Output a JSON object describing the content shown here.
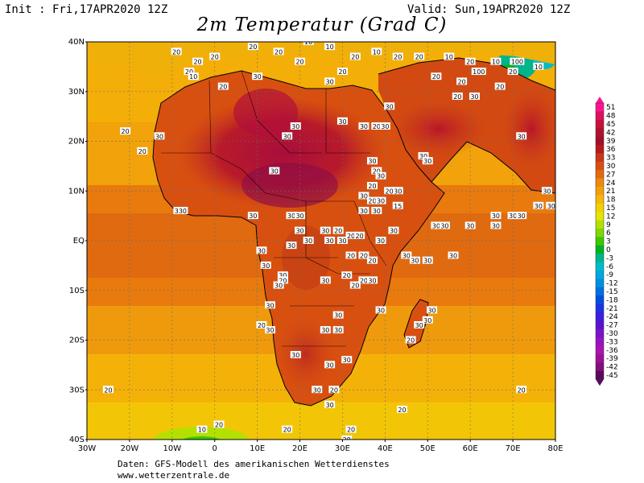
{
  "header": {
    "init": "Init : Fri,17APR2020 12Z",
    "valid": "Valid: Sun,19APR2020 12Z",
    "title": "2m Temperatur (Grad C)"
  },
  "axes": {
    "lat_labels": [
      "40N",
      "30N",
      "20N",
      "10N",
      "EQ",
      "10S",
      "20S",
      "30S",
      "40S"
    ],
    "lon_labels": [
      "30W",
      "20W",
      "10W",
      "0",
      "10E",
      "20E",
      "30E",
      "40E",
      "50E",
      "60E",
      "70E",
      "80E"
    ]
  },
  "legend": {
    "values": [
      "51",
      "48",
      "45",
      "42",
      "39",
      "36",
      "33",
      "30",
      "27",
      "24",
      "21",
      "18",
      "15",
      "12",
      "9",
      "6",
      "3",
      "0",
      "-3",
      "-6",
      "-9",
      "-12",
      "-15",
      "-18",
      "-21",
      "-24",
      "-27",
      "-30",
      "-33",
      "-36",
      "-39",
      "-42",
      "-45"
    ],
    "colors": [
      "#ff1493",
      "#e0105f",
      "#c8103c",
      "#b01030",
      "#a0102a",
      "#b81a1a",
      "#c83818",
      "#d85010",
      "#e46810",
      "#ec8a0c",
      "#f2a00a",
      "#f6b808",
      "#f2d000",
      "#e6e400",
      "#b4e000",
      "#7ed800",
      "#3cc800",
      "#00b41e",
      "#00b48c",
      "#00bcc8",
      "#00a8e0",
      "#0090e0",
      "#0070e0",
      "#0050e0",
      "#1e32e0",
      "#3c1ee0",
      "#5a14d0",
      "#7a14c8",
      "#9414c0",
      "#a814b0",
      "#9e1096",
      "#80107c",
      "#5a0a5a"
    ]
  },
  "contour_labels": [
    {
      "t": "20",
      "lon": -9,
      "lat": 38
    },
    {
      "t": "20",
      "lon": -6,
      "lat": 34
    },
    {
      "t": "20",
      "lon": -4,
      "lat": 36
    },
    {
      "t": "20",
      "lon": 0,
      "lat": 37
    },
    {
      "t": "10",
      "lon": -5,
      "lat": 33
    },
    {
      "t": "20",
      "lon": 2,
      "lat": 31
    },
    {
      "t": "20",
      "lon": 9,
      "lat": 39
    },
    {
      "t": "20",
      "lon": 15,
      "lat": 38
    },
    {
      "t": "30",
      "lon": 10,
      "lat": 33
    },
    {
      "t": "20",
      "lon": 20,
      "lat": 36
    },
    {
      "t": "10",
      "lon": 22,
      "lat": 40
    },
    {
      "t": "10",
      "lon": 27,
      "lat": 39
    },
    {
      "t": "20",
      "lon": 33,
      "lat": 37
    },
    {
      "t": "10",
      "lon": 38,
      "lat": 38
    },
    {
      "t": "20",
      "lon": 43,
      "lat": 37
    },
    {
      "t": "20",
      "lon": 48,
      "lat": 37
    },
    {
      "t": "10",
      "lon": 55,
      "lat": 37
    },
    {
      "t": "20",
      "lon": 60,
      "lat": 36
    },
    {
      "t": "100",
      "lon": 62,
      "lat": 34
    },
    {
      "t": "10",
      "lon": 66,
      "lat": 36
    },
    {
      "t": "100",
      "lon": 71,
      "lat": 36
    },
    {
      "t": "10",
      "lon": 76,
      "lat": 35
    },
    {
      "t": "20",
      "lon": 52,
      "lat": 33
    },
    {
      "t": "20",
      "lon": 58,
      "lat": 32
    },
    {
      "t": "20",
      "lon": 70,
      "lat": 34
    },
    {
      "t": "30",
      "lon": 27,
      "lat": 32
    },
    {
      "t": "20",
      "lon": 30,
      "lat": 34
    },
    {
      "t": "30",
      "lon": 41,
      "lat": 27
    },
    {
      "t": "20",
      "lon": 57,
      "lat": 29
    },
    {
      "t": "30",
      "lon": 61,
      "lat": 29
    },
    {
      "t": "20",
      "lon": 67,
      "lat": 31
    },
    {
      "t": "20",
      "lon": -21,
      "lat": 22
    },
    {
      "t": "20",
      "lon": -17,
      "lat": 18
    },
    {
      "t": "30",
      "lon": -13,
      "lat": 21
    },
    {
      "t": "30",
      "lon": 30,
      "lat": 24
    },
    {
      "t": "30",
      "lon": 19,
      "lat": 23
    },
    {
      "t": "30",
      "lon": 17,
      "lat": 21
    },
    {
      "t": "30",
      "lon": 35,
      "lat": 23
    },
    {
      "t": "20",
      "lon": 38,
      "lat": 23
    },
    {
      "t": "30",
      "lon": 40,
      "lat": 23
    },
    {
      "t": "30",
      "lon": 49,
      "lat": 17
    },
    {
      "t": "30",
      "lon": 50,
      "lat": 16
    },
    {
      "t": "30",
      "lon": 72,
      "lat": 21
    },
    {
      "t": "30",
      "lon": 14,
      "lat": 14
    },
    {
      "t": "30",
      "lon": 37,
      "lat": 16
    },
    {
      "t": "20",
      "lon": 38,
      "lat": 14
    },
    {
      "t": "30",
      "lon": 39,
      "lat": 13
    },
    {
      "t": "20",
      "lon": 37,
      "lat": 11
    },
    {
      "t": "30",
      "lon": 35,
      "lat": 9
    },
    {
      "t": "30",
      "lon": 43,
      "lat": 10
    },
    {
      "t": "20",
      "lon": 41,
      "lat": 10
    },
    {
      "t": "20",
      "lon": 37,
      "lat": 8
    },
    {
      "t": "30",
      "lon": 39,
      "lat": 8
    },
    {
      "t": "15",
      "lon": 43,
      "lat": 7
    },
    {
      "t": "30",
      "lon": 78,
      "lat": 10
    },
    {
      "t": "30",
      "lon": 76,
      "lat": 7
    },
    {
      "t": "30",
      "lon": 79,
      "lat": 7
    },
    {
      "t": "330",
      "lon": -8,
      "lat": 6
    },
    {
      "t": "30",
      "lon": 9,
      "lat": 5
    },
    {
      "t": "30",
      "lon": 18,
      "lat": 5
    },
    {
      "t": "30",
      "lon": 20,
      "lat": 5
    },
    {
      "t": "30",
      "lon": 35,
      "lat": 6
    },
    {
      "t": "30",
      "lon": 38,
      "lat": 6
    },
    {
      "t": "30",
      "lon": 52,
      "lat": 3
    },
    {
      "t": "30",
      "lon": 54,
      "lat": 3
    },
    {
      "t": "30",
      "lon": 60,
      "lat": 3
    },
    {
      "t": "30",
      "lon": 66,
      "lat": 3
    },
    {
      "t": "30",
      "lon": 70,
      "lat": 5
    },
    {
      "t": "30",
      "lon": 72,
      "lat": 5
    },
    {
      "t": "30",
      "lon": 66,
      "lat": 5
    },
    {
      "t": "30",
      "lon": 20,
      "lat": 2
    },
    {
      "t": "30",
      "lon": 26,
      "lat": 2
    },
    {
      "t": "20",
      "lon": 29,
      "lat": 2
    },
    {
      "t": "30",
      "lon": 30,
      "lat": 0
    },
    {
      "t": "20",
      "lon": 32,
      "lat": 1
    },
    {
      "t": "20",
      "lon": 34,
      "lat": 1
    },
    {
      "t": "30",
      "lon": 39,
      "lat": 0
    },
    {
      "t": "30",
      "lon": 42,
      "lat": 2
    },
    {
      "t": "30",
      "lon": 22,
      "lat": 0
    },
    {
      "t": "30",
      "lon": 27,
      "lat": 0
    },
    {
      "t": "30",
      "lon": 18,
      "lat": -1
    },
    {
      "t": "30",
      "lon": 11,
      "lat": -2
    },
    {
      "t": "20",
      "lon": 32,
      "lat": -3
    },
    {
      "t": "20",
      "lon": 35,
      "lat": -3
    },
    {
      "t": "20",
      "lon": 37,
      "lat": -4
    },
    {
      "t": "30",
      "lon": 45,
      "lat": -3
    },
    {
      "t": "30",
      "lon": 47,
      "lat": -4
    },
    {
      "t": "30",
      "lon": 50,
      "lat": -4
    },
    {
      "t": "30",
      "lon": 56,
      "lat": -3
    },
    {
      "t": "30",
      "lon": 12,
      "lat": -5
    },
    {
      "t": "30",
      "lon": 16,
      "lat": -7
    },
    {
      "t": "20",
      "lon": 16,
      "lat": -8
    },
    {
      "t": "30",
      "lon": 15,
      "lat": -9
    },
    {
      "t": "30",
      "lon": 26,
      "lat": -8
    },
    {
      "t": "20",
      "lon": 31,
      "lat": -7
    },
    {
      "t": "20",
      "lon": 35,
      "lat": -8
    },
    {
      "t": "30",
      "lon": 37,
      "lat": -8
    },
    {
      "t": "20",
      "lon": 33,
      "lat": -9
    },
    {
      "t": "30",
      "lon": 13,
      "lat": -13
    },
    {
      "t": "30",
      "lon": 39,
      "lat": -14
    },
    {
      "t": "30",
      "lon": 51,
      "lat": -14
    },
    {
      "t": "20",
      "lon": 11,
      "lat": -17
    },
    {
      "t": "30",
      "lon": 13,
      "lat": -18
    },
    {
      "t": "30",
      "lon": 26,
      "lat": -18
    },
    {
      "t": "30",
      "lon": 29,
      "lat": -18
    },
    {
      "t": "30",
      "lon": 29,
      "lat": -15
    },
    {
      "t": "30",
      "lon": 50,
      "lat": -16
    },
    {
      "t": "30",
      "lon": 48,
      "lat": -17
    },
    {
      "t": "20",
      "lon": 46,
      "lat": -20
    },
    {
      "t": "30",
      "lon": 19,
      "lat": -23
    },
    {
      "t": "30",
      "lon": 27,
      "lat": -25
    },
    {
      "t": "30",
      "lon": 31,
      "lat": -24
    },
    {
      "t": "30",
      "lon": 24,
      "lat": -30
    },
    {
      "t": "20",
      "lon": 28,
      "lat": -30
    },
    {
      "t": "30",
      "lon": 27,
      "lat": -33
    },
    {
      "t": "20",
      "lon": -25,
      "lat": -30
    },
    {
      "t": "20",
      "lon": 72,
      "lat": -30
    },
    {
      "t": "20",
      "lon": 1,
      "lat": -37
    },
    {
      "t": "20",
      "lon": 44,
      "lat": -34
    },
    {
      "t": "10",
      "lon": -3,
      "lat": -38
    },
    {
      "t": "20",
      "lon": 17,
      "lat": -38
    },
    {
      "t": "20",
      "lon": 32,
      "lat": -38
    },
    {
      "t": "20",
      "lon": 31,
      "lat": -40
    }
  ],
  "footer": {
    "line1": "Daten: GFS-Modell des amerikanischen Wetterdienstes",
    "line2": "www.wetterzentrale.de"
  }
}
